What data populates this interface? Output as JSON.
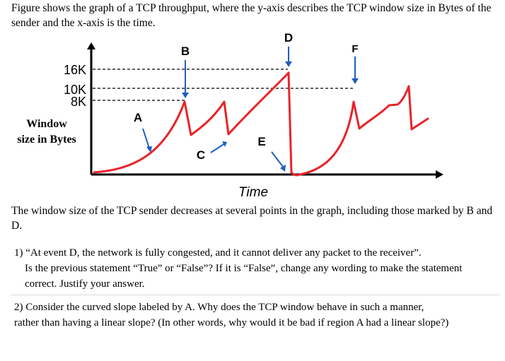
{
  "intro_text": "Figure shows the graph of a TCP throughput, where the y-axis describes the TCP window size in Bytes of the sender and the x-axis is the time.",
  "figure": {
    "y_label_line1": "Window",
    "y_label_line2": "size in Bytes",
    "x_label": "Time",
    "ticks": {
      "t16k": "16K",
      "t10k": "10K",
      "t8k": "8K"
    },
    "markers": {
      "A": "A",
      "B": "B",
      "C": "C",
      "D": "D",
      "E": "E",
      "F": "F"
    },
    "curve_color": "#e8242a",
    "axis_color": "#000000"
  },
  "after_text": "The window size of the TCP sender decreases at several points in the graph, including those marked by B and D.",
  "questions": {
    "q1_line1": "1) “At event D, the network is fully congested, and it cannot deliver any packet to the receiver”.",
    "q1_rest": "Is the previous statement “True” or “False”? If it is “False”, change any wording to make the statement correct. Justify your answer.",
    "q2_line1": "2) Consider the curved slope labeled by A. Why does the TCP window behave in such a manner,",
    "q2_rest": "rather than having a linear slope? (In other words, why would it be bad if region A had a linear slope?)"
  }
}
